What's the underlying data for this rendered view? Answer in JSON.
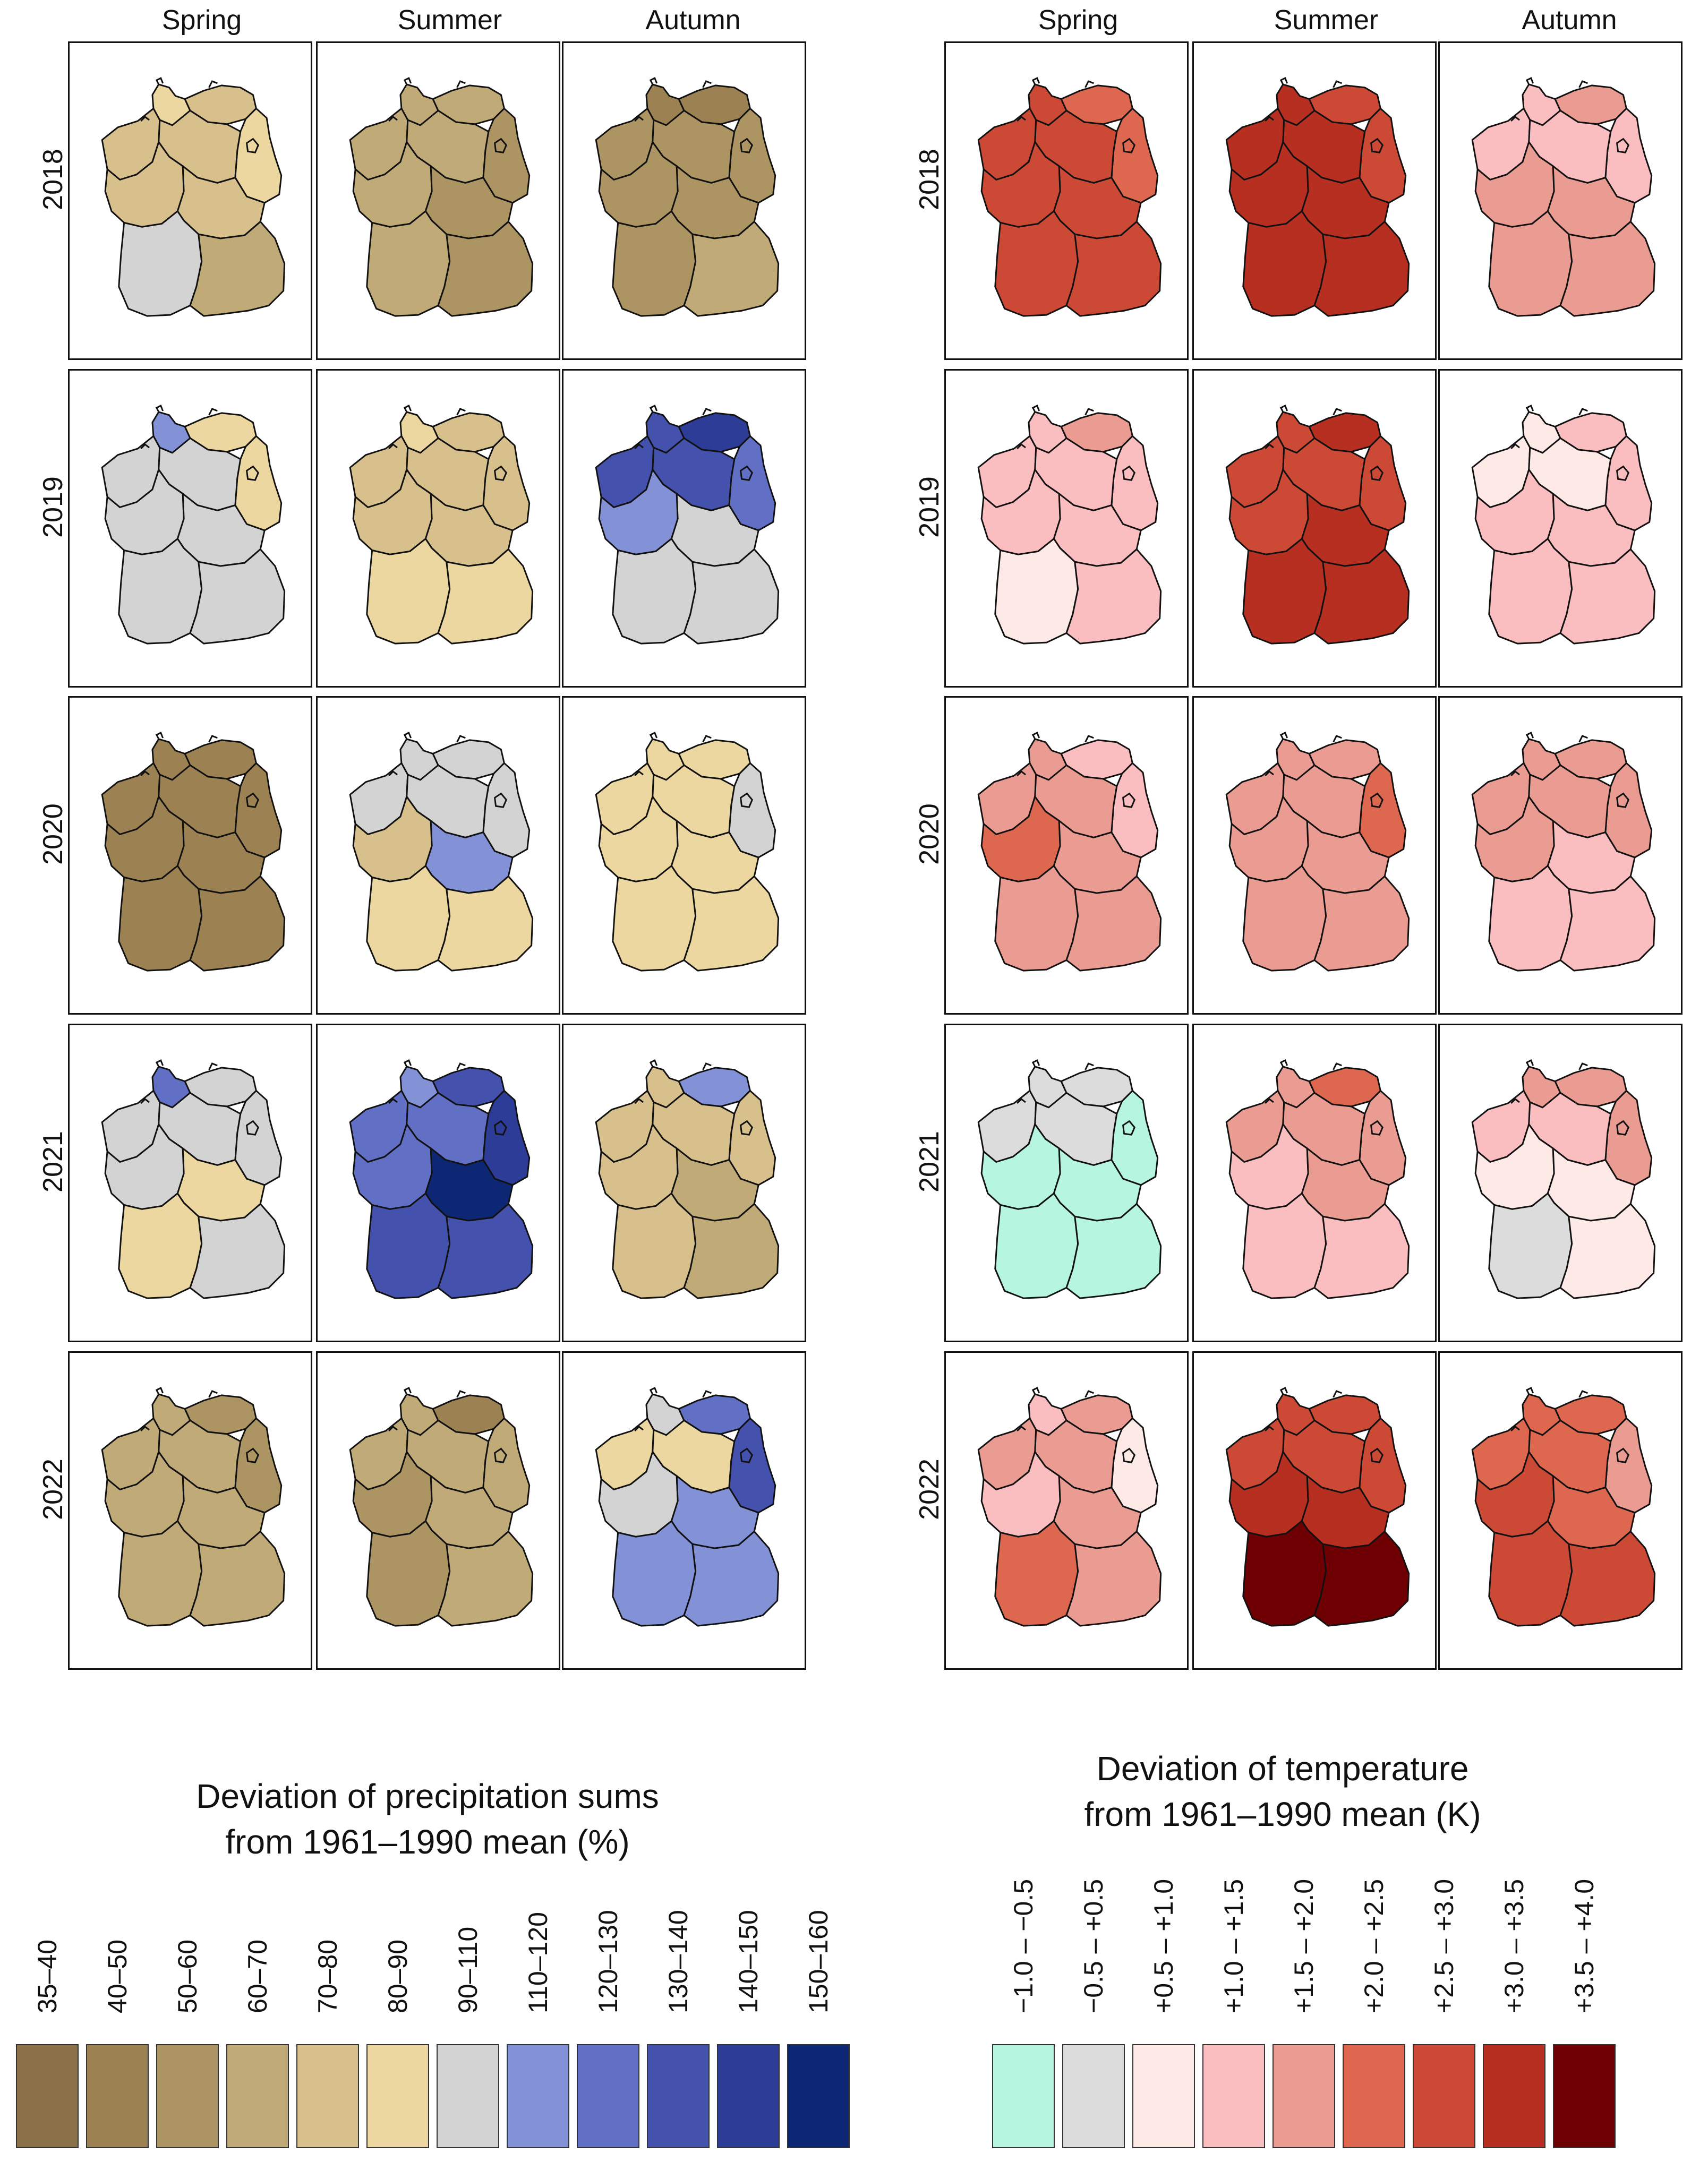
{
  "seasons": [
    "Spring",
    "Summer",
    "Autumn"
  ],
  "years": [
    "2018",
    "2019",
    "2020",
    "2021",
    "2022"
  ],
  "precipitation_map": {
    "legend_title_line1": "Deviation of precipitation sums",
    "legend_title_line2": "from 1961–1990 mean (%)",
    "classes": [
      {
        "label": "35–40",
        "color": "#8a7048"
      },
      {
        "label": "40–50",
        "color": "#9c8253"
      },
      {
        "label": "50–60",
        "color": "#ad9563"
      },
      {
        "label": "60–70",
        "color": "#c0aa78"
      },
      {
        "label": "70–80",
        "color": "#d7c08c"
      },
      {
        "label": "80–90",
        "color": "#ecd7a1"
      },
      {
        "label": "90–110",
        "color": "#d3d3d3"
      },
      {
        "label": "110–120",
        "color": "#8391d6"
      },
      {
        "label": "120–130",
        "color": "#6170c5"
      },
      {
        "label": "130–140",
        "color": "#4452ae"
      },
      {
        "label": "140–150",
        "color": "#2c3c97"
      },
      {
        "label": "150–160",
        "color": "#0e2774"
      }
    ]
  },
  "temperature_map": {
    "legend_title_line1": "Deviation of temperature",
    "legend_title_line2": "from 1961–1990 mean (K)",
    "classes": [
      {
        "label": "−1.0 – −0.5",
        "color": "#b6f5df"
      },
      {
        "label": "−0.5 – +0.5",
        "color": "#dcdcdc"
      },
      {
        "label": "+0.5 – +1.0",
        "color": "#fde9e6"
      },
      {
        "label": "+1.0 – +1.5",
        "color": "#fbbec0"
      },
      {
        "label": "+1.5 – +2.0",
        "color": "#eb9c92"
      },
      {
        "label": "+2.0 – +2.5",
        "color": "#de6750"
      },
      {
        "label": "+2.5 – +3.0",
        "color": "#cc4a35"
      },
      {
        "label": "+3.0 – +3.5",
        "color": "#b72f20"
      },
      {
        "label": "+3.5 – +4.0",
        "color": "#6e0003"
      }
    ]
  },
  "region_classes_order": [
    "north",
    "northeast",
    "east",
    "northwest",
    "center_north",
    "west",
    "center",
    "southwest",
    "south"
  ],
  "precipitation_panels": [
    [
      [
        5,
        4,
        5,
        4,
        4,
        4,
        4,
        6,
        3
      ],
      [
        3,
        3,
        2,
        3,
        3,
        3,
        2,
        3,
        2
      ],
      [
        1,
        1,
        2,
        2,
        2,
        2,
        2,
        2,
        3
      ]
    ],
    [
      [
        7,
        5,
        5,
        6,
        6,
        6,
        6,
        6,
        6
      ],
      [
        5,
        4,
        4,
        4,
        4,
        4,
        4,
        5,
        5
      ],
      [
        9,
        10,
        8,
        9,
        9,
        7,
        6,
        6,
        6
      ]
    ],
    [
      [
        1,
        1,
        1,
        1,
        1,
        1,
        1,
        1,
        1
      ],
      [
        6,
        6,
        6,
        6,
        6,
        4,
        7,
        5,
        5
      ],
      [
        5,
        5,
        6,
        5,
        5,
        5,
        5,
        5,
        5
      ]
    ],
    [
      [
        8,
        6,
        6,
        6,
        6,
        6,
        5,
        5,
        6
      ],
      [
        7,
        9,
        10,
        8,
        8,
        8,
        11,
        9,
        9
      ],
      [
        4,
        7,
        4,
        4,
        4,
        4,
        3,
        4,
        3
      ]
    ],
    [
      [
        3,
        2,
        2,
        3,
        3,
        3,
        3,
        3,
        3
      ],
      [
        3,
        1,
        3,
        3,
        3,
        2,
        3,
        2,
        3
      ],
      [
        6,
        8,
        9,
        5,
        5,
        6,
        7,
        7,
        7
      ]
    ]
  ],
  "temperature_panels": [
    [
      [
        6,
        5,
        5,
        6,
        6,
        6,
        6,
        6,
        6
      ],
      [
        7,
        6,
        6,
        7,
        7,
        7,
        7,
        7,
        7
      ],
      [
        3,
        4,
        3,
        3,
        3,
        4,
        4,
        4,
        4
      ]
    ],
    [
      [
        3,
        4,
        3,
        3,
        3,
        3,
        3,
        2,
        3
      ],
      [
        6,
        7,
        6,
        6,
        6,
        6,
        7,
        7,
        7
      ],
      [
        2,
        3,
        3,
        2,
        2,
        3,
        3,
        3,
        3
      ]
    ],
    [
      [
        4,
        3,
        3,
        4,
        4,
        5,
        4,
        4,
        4
      ],
      [
        4,
        4,
        5,
        4,
        4,
        4,
        4,
        4,
        4
      ],
      [
        4,
        4,
        4,
        4,
        4,
        4,
        3,
        3,
        3
      ]
    ],
    [
      [
        1,
        1,
        0,
        1,
        1,
        0,
        0,
        0,
        0
      ],
      [
        4,
        5,
        4,
        4,
        4,
        3,
        4,
        3,
        3
      ],
      [
        4,
        4,
        4,
        3,
        3,
        2,
        2,
        1,
        2
      ]
    ],
    [
      [
        3,
        4,
        2,
        4,
        4,
        3,
        4,
        5,
        4
      ],
      [
        6,
        6,
        6,
        6,
        6,
        7,
        7,
        8,
        8
      ],
      [
        5,
        5,
        4,
        5,
        5,
        6,
        5,
        6,
        6
      ]
    ]
  ]
}
